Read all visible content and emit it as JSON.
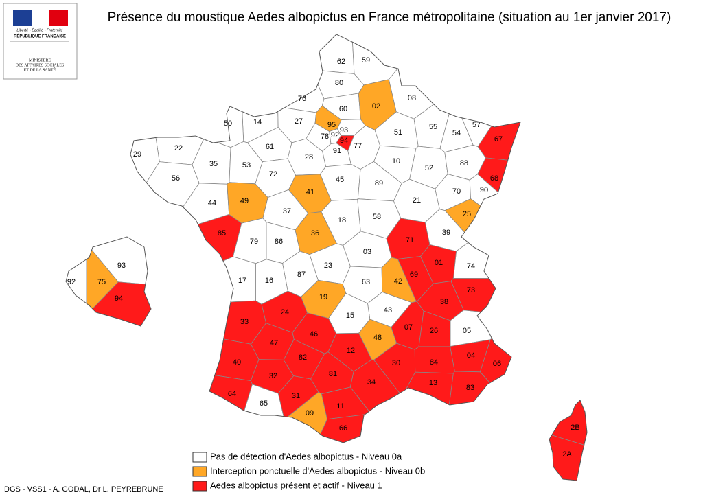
{
  "logo": {
    "motto": "Liberté • Égalité • Fraternité",
    "republic": "RÉPUBLIQUE FRANÇAISE",
    "ministry": [
      "MINISTÈRE",
      "DES AFFAIRES SOCIALES",
      "ET DE LA SANTÉ"
    ]
  },
  "title": "Présence du moustique Aedes albopictus en France métropolitaine (situation au 1er janvier 2017)",
  "credit": "DGS - VSS1 - A. GODAL, Dr L. PEYREBRUNE",
  "legend": [
    {
      "label": "Pas de détection d'Aedes albopictus - Niveau 0a",
      "color": "#ffffff",
      "departments": [
        "62",
        "59",
        "80",
        "76",
        "60",
        "08",
        "14",
        "27",
        "50",
        "51",
        "55",
        "54",
        "57",
        "78",
        "92",
        "93",
        "91",
        "77",
        "61",
        "22",
        "29",
        "35",
        "53",
        "72",
        "28",
        "10",
        "52",
        "88",
        "45",
        "89",
        "56",
        "44",
        "70",
        "90",
        "21",
        "37",
        "18",
        "58",
        "39",
        "79",
        "86",
        "03",
        "74",
        "23",
        "87",
        "17",
        "16",
        "63",
        "43",
        "15",
        "05",
        "65",
        "92",
        "93"
      ]
    },
    {
      "label": "Interception ponctuelle d'Aedes albopictus - Niveau 0b",
      "color": "#ffa726",
      "departments": [
        "02",
        "95",
        "49",
        "41",
        "36",
        "25",
        "42",
        "19",
        "48",
        "09",
        "75"
      ]
    },
    {
      "label": "Aedes albopictus présent et actif - Niveau 1",
      "color": "#ff1a1a",
      "departments": [
        "67",
        "68",
        "94",
        "85",
        "71",
        "01",
        "69",
        "73",
        "38",
        "07",
        "26",
        "04",
        "06",
        "84",
        "83",
        "13",
        "30",
        "34",
        "11",
        "66",
        "31",
        "32",
        "81",
        "82",
        "12",
        "46",
        "47",
        "24",
        "33",
        "40",
        "64",
        "94",
        "2B",
        "2A"
      ]
    }
  ]
}
